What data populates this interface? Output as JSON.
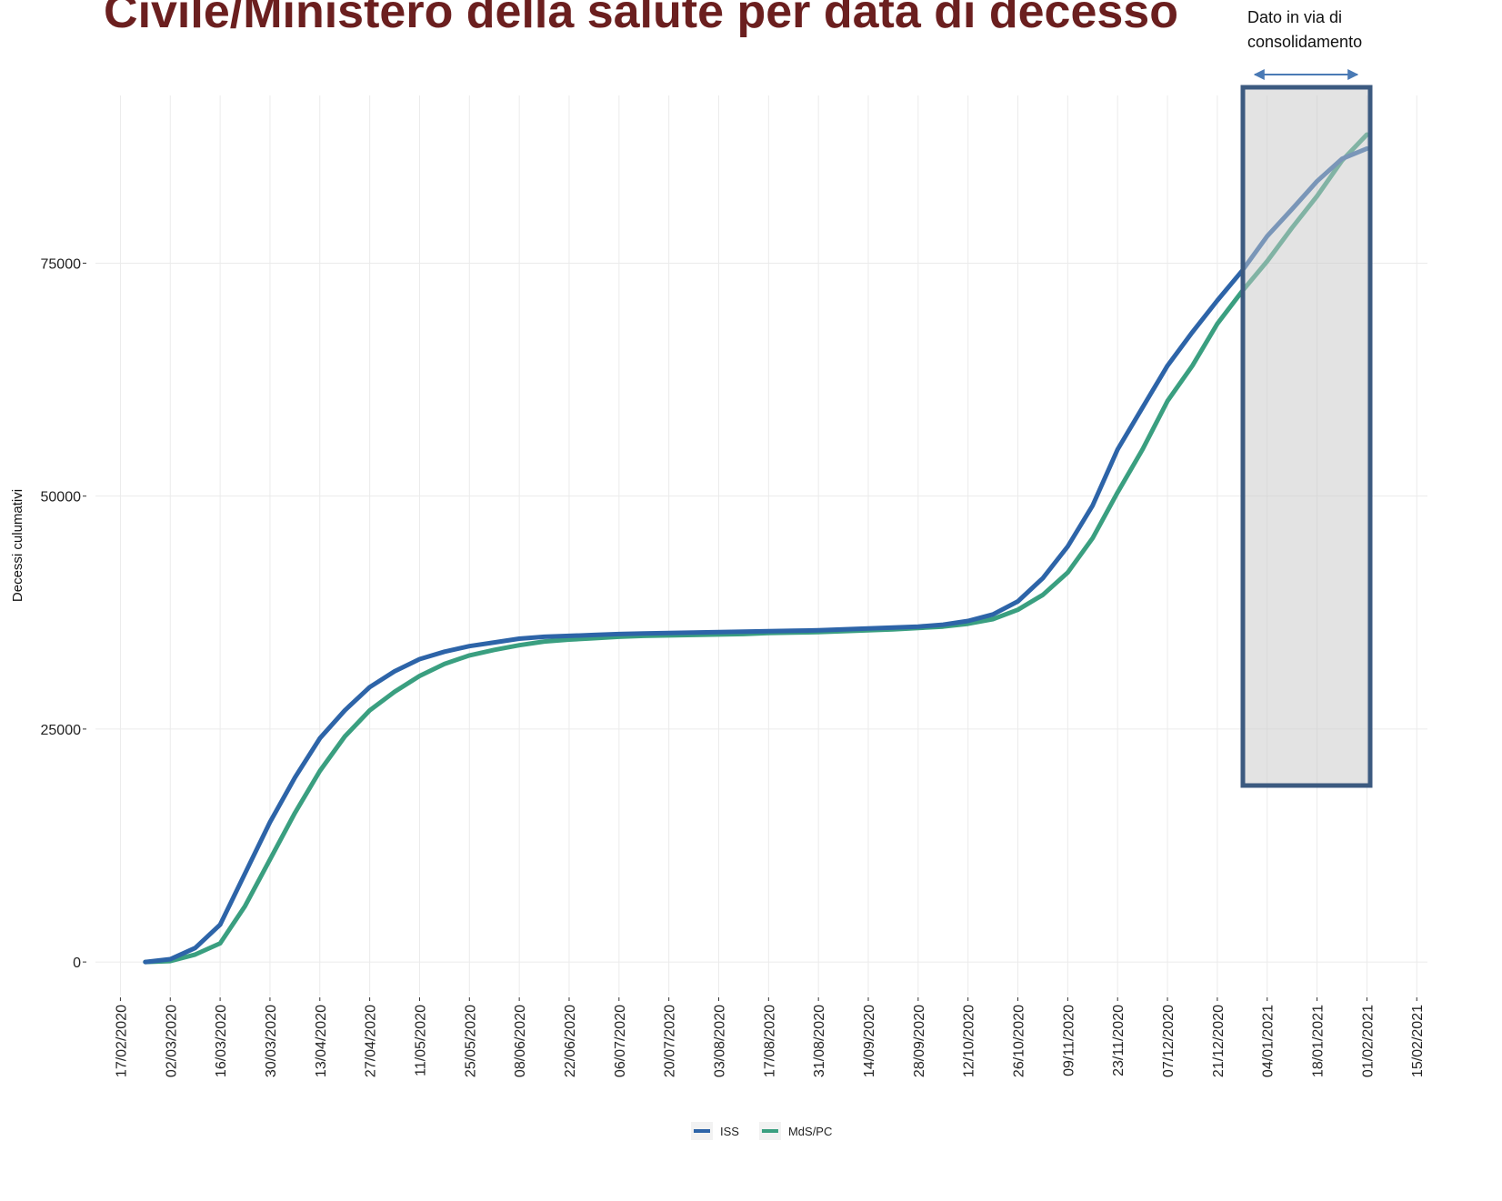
{
  "chart_data": {
    "type": "line",
    "title": "Civile/Ministero della salute per data di decesso",
    "y_label": "Decessi culumativi",
    "annotation": [
      "Dato in via di",
      "consolidamento"
    ],
    "x": [
      "24/02/2020",
      "02/03/2020",
      "09/03/2020",
      "16/03/2020",
      "23/03/2020",
      "30/03/2020",
      "06/04/2020",
      "13/04/2020",
      "20/04/2020",
      "27/04/2020",
      "04/05/2020",
      "11/05/2020",
      "18/05/2020",
      "25/05/2020",
      "01/06/2020",
      "08/06/2020",
      "15/06/2020",
      "22/06/2020",
      "29/06/2020",
      "06/07/2020",
      "13/07/2020",
      "20/07/2020",
      "27/07/2020",
      "03/08/2020",
      "10/08/2020",
      "17/08/2020",
      "24/08/2020",
      "31/08/2020",
      "07/09/2020",
      "14/09/2020",
      "21/09/2020",
      "28/09/2020",
      "05/10/2020",
      "12/10/2020",
      "19/10/2020",
      "26/10/2020",
      "02/11/2020",
      "09/11/2020",
      "16/11/2020",
      "23/11/2020",
      "30/11/2020",
      "07/12/2020",
      "14/12/2020",
      "21/12/2020",
      "28/12/2020",
      "04/01/2021",
      "11/01/2021",
      "18/01/2021",
      "25/01/2021",
      "01/02/2021"
    ],
    "series": [
      {
        "name": "ISS",
        "color": "#2d64a8",
        "values": [
          0,
          300,
          1500,
          4000,
          9500,
          15000,
          19800,
          24000,
          27000,
          29500,
          31200,
          32500,
          33300,
          33900,
          34300,
          34700,
          34900,
          35000,
          35100,
          35200,
          35250,
          35300,
          35350,
          35400,
          35450,
          35500,
          35550,
          35600,
          35700,
          35800,
          35900,
          36000,
          36200,
          36600,
          37300,
          38700,
          41200,
          44600,
          49000,
          55000,
          59500,
          64000,
          67600,
          71000,
          74200,
          77900,
          80800,
          83800,
          86200,
          87300
        ]
      },
      {
        "name": "MdS/PC",
        "color": "#3a9f80",
        "values": [
          0,
          100,
          800,
          2000,
          6000,
          11000,
          16000,
          20500,
          24200,
          27000,
          29000,
          30700,
          32000,
          32900,
          33500,
          34000,
          34400,
          34600,
          34750,
          34900,
          35000,
          35050,
          35100,
          35150,
          35200,
          35300,
          35350,
          35400,
          35500,
          35600,
          35700,
          35850,
          36000,
          36300,
          36800,
          37800,
          39400,
          41800,
          45500,
          50400,
          55000,
          60200,
          64000,
          68500,
          72000,
          75200,
          78800,
          82200,
          86000,
          88800
        ]
      }
    ],
    "xlim": [
      "10/02/2020",
      "18/02/2021"
    ],
    "xticks": [
      "17/02/2020",
      "02/03/2020",
      "16/03/2020",
      "30/03/2020",
      "13/04/2020",
      "27/04/2020",
      "11/05/2020",
      "25/05/2020",
      "08/06/2020",
      "22/06/2020",
      "06/07/2020",
      "20/07/2020",
      "03/08/2020",
      "17/08/2020",
      "31/08/2020",
      "14/09/2020",
      "28/09/2020",
      "12/10/2020",
      "26/10/2020",
      "09/11/2020",
      "23/11/2020",
      "07/12/2020",
      "21/12/2020",
      "04/01/2021",
      "18/01/2021",
      "01/02/2021",
      "15/02/2021"
    ],
    "ylim": [
      -3600,
      93000
    ],
    "yticks": [
      0,
      25000,
      50000,
      75000
    ],
    "grid": true,
    "legend": "bottom"
  }
}
